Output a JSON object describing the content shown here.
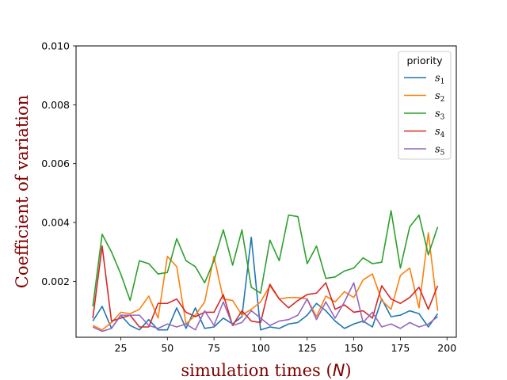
{
  "chart_data": {
    "type": "line",
    "title": "",
    "xlabel": "simulation times (N)",
    "ylabel": "Coefficient of variation",
    "label_color": "#800000",
    "xlim": [
      1,
      205
    ],
    "ylim": [
      0.0001,
      0.01
    ],
    "xticks": [
      25,
      50,
      75,
      100,
      125,
      150,
      175,
      200
    ],
    "xtick_labels": [
      "25",
      "50",
      "75",
      "100",
      "125",
      "150",
      "175",
      "200"
    ],
    "yticks": [
      0.002,
      0.004,
      0.006,
      0.008,
      0.01
    ],
    "ytick_labels": [
      "0.002",
      "0.004",
      "0.006",
      "0.008",
      "0.010"
    ],
    "grid": false,
    "legend": {
      "title": "priority",
      "placement": "top-right"
    },
    "x": [
      10,
      15,
      20,
      25,
      30,
      35,
      40,
      45,
      50,
      55,
      60,
      65,
      70,
      75,
      80,
      85,
      90,
      95,
      100,
      105,
      110,
      115,
      120,
      125,
      130,
      135,
      140,
      145,
      150,
      155,
      160,
      165,
      170,
      175,
      180,
      185,
      190,
      195
    ],
    "series": [
      {
        "name": "s1",
        "subscript": "1",
        "color": "#1f77b4",
        "values": [
          0.00065,
          0.00115,
          0.0004,
          0.00085,
          0.0005,
          0.00035,
          0.0007,
          0.00035,
          0.00035,
          0.0011,
          0.0004,
          0.0011,
          0.0004,
          0.00045,
          0.00075,
          0.00055,
          0.0008,
          0.0035,
          0.00035,
          0.00045,
          0.0004,
          0.00055,
          0.0006,
          0.00085,
          0.00125,
          0.001,
          0.00065,
          0.0004,
          0.00055,
          0.00065,
          0.00045,
          0.0014,
          0.0008,
          0.00085,
          0.001,
          0.0009,
          0.00045,
          0.0009
        ]
      },
      {
        "name": "s2",
        "subscript": "2",
        "color": "#ff7f0e",
        "values": [
          0.0005,
          0.00035,
          0.0006,
          0.00095,
          0.0009,
          0.00105,
          0.0015,
          0.00075,
          0.00285,
          0.0025,
          0.00055,
          0.00085,
          0.0013,
          0.00285,
          0.0014,
          0.00135,
          0.00085,
          0.00105,
          0.0013,
          0.00185,
          0.0014,
          0.00145,
          0.00145,
          0.0014,
          0.0008,
          0.0015,
          0.0013,
          0.00165,
          0.00145,
          0.00205,
          0.00225,
          0.00135,
          0.00105,
          0.0022,
          0.00245,
          0.0011,
          0.00365,
          0.001
        ]
      },
      {
        "name": "s3",
        "subscript": "3",
        "color": "#2ca02c",
        "values": [
          0.00115,
          0.0036,
          0.003,
          0.00225,
          0.00135,
          0.0027,
          0.0026,
          0.00225,
          0.0023,
          0.00345,
          0.0027,
          0.0025,
          0.00195,
          0.0027,
          0.00375,
          0.00255,
          0.00375,
          0.0018,
          0.0016,
          0.0034,
          0.0027,
          0.00425,
          0.0042,
          0.0026,
          0.0032,
          0.0021,
          0.00215,
          0.00235,
          0.00245,
          0.0028,
          0.0026,
          0.00265,
          0.0044,
          0.00245,
          0.00385,
          0.00425,
          0.0029,
          0.00385
        ]
      },
      {
        "name": "s4",
        "subscript": "4",
        "color": "#d62728",
        "values": [
          0.00075,
          0.0032,
          0.00065,
          0.00075,
          0.00085,
          0.00045,
          0.00045,
          0.00125,
          0.00125,
          0.0014,
          0.00095,
          0.0008,
          0.00095,
          0.00095,
          0.00155,
          0.0005,
          0.001,
          0.00065,
          0.0006,
          0.0019,
          0.0014,
          0.0011,
          0.00135,
          0.00155,
          0.0016,
          0.00195,
          0.00105,
          0.0012,
          0.00095,
          0.001,
          0.00075,
          0.00185,
          0.0014,
          0.00125,
          0.00145,
          0.0018,
          0.00105,
          0.00185
        ]
      },
      {
        "name": "s5",
        "subscript": "5",
        "color": "#9467bd",
        "values": [
          0.00045,
          0.0003,
          0.0004,
          0.00085,
          0.00085,
          0.00085,
          0.0005,
          0.0004,
          0.00055,
          0.00045,
          0.00055,
          0.00035,
          0.001,
          0.0005,
          0.0013,
          0.0005,
          0.0006,
          0.001,
          0.00075,
          0.0005,
          0.00065,
          0.0007,
          0.00085,
          0.0014,
          0.0007,
          0.0013,
          0.00075,
          0.0013,
          0.00195,
          0.0006,
          0.00095,
          0.00045,
          0.00055,
          0.0004,
          0.0006,
          0.00045,
          0.00055,
          0.0008
        ]
      }
    ]
  }
}
